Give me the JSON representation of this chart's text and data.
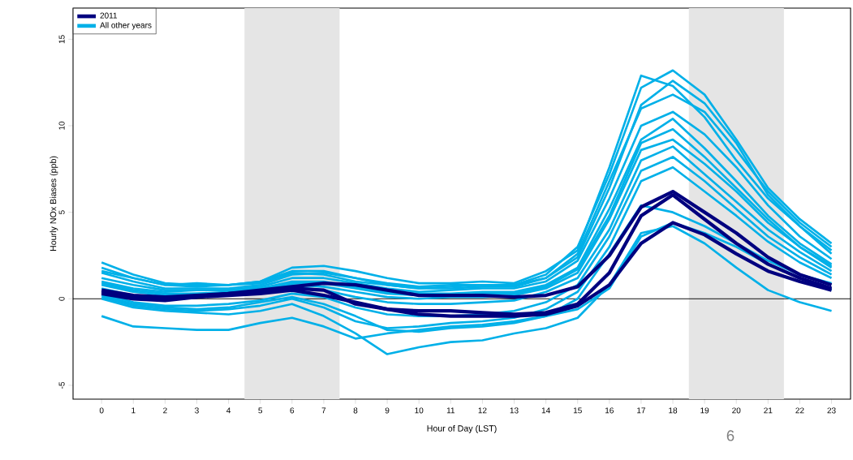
{
  "chart_data": {
    "type": "line",
    "xlabel": "Hour of Day (LST)",
    "ylabel": "Hourly NOx Biases (ppb)",
    "x": [
      0,
      1,
      2,
      3,
      4,
      5,
      6,
      7,
      8,
      9,
      10,
      11,
      12,
      13,
      14,
      15,
      16,
      17,
      18,
      19,
      20,
      21,
      22,
      23
    ],
    "xlim": [
      -0.9,
      23.6
    ],
    "ylim": [
      -5.8,
      16.8
    ],
    "xticks": [
      0,
      1,
      2,
      3,
      4,
      5,
      6,
      7,
      8,
      9,
      10,
      11,
      12,
      13,
      14,
      15,
      16,
      17,
      18,
      19,
      20,
      21,
      22,
      23
    ],
    "yticks": [
      -5,
      0,
      5,
      10,
      15
    ],
    "legend": "top left",
    "grid": false,
    "marker": "none",
    "line_style": "solid",
    "ref_lines": [
      {
        "axis": "y",
        "value": 0,
        "color": "#000000"
      }
    ],
    "bands": [
      {
        "axis": "x",
        "from": 4.5,
        "to": 7.5,
        "color": "#e5e5e5"
      },
      {
        "axis": "x",
        "from": 18.5,
        "to": 21.5,
        "color": "#e5e5e5"
      }
    ],
    "annotations": [
      "6"
    ],
    "series": [
      {
        "name": "2011",
        "color": "#00007f",
        "values": [
          0.5,
          0.2,
          0.1,
          0.2,
          0.3,
          0.5,
          0.7,
          0.9,
          0.8,
          0.5,
          0.2,
          0.2,
          0.2,
          0.1,
          0.2,
          0.7,
          2.5,
          5.3,
          6.2,
          5.0,
          3.8,
          2.4,
          1.4,
          0.8
        ]
      },
      {
        "color": "#00007f",
        "values": [
          0.4,
          0.1,
          0.0,
          0.1,
          0.3,
          0.4,
          0.6,
          0.5,
          -0.3,
          -0.6,
          -0.7,
          -0.7,
          -0.8,
          -0.9,
          -0.8,
          -0.3,
          1.5,
          4.8,
          6.0,
          4.6,
          3.2,
          2.0,
          1.2,
          0.6
        ]
      },
      {
        "color": "#00007f",
        "values": [
          0.3,
          0.0,
          -0.1,
          0.1,
          0.2,
          0.3,
          0.5,
          0.2,
          -0.2,
          -0.6,
          -0.9,
          -1.0,
          -1.0,
          -1.0,
          -0.9,
          -0.4,
          0.8,
          3.2,
          4.4,
          3.7,
          2.6,
          1.6,
          1.0,
          0.5
        ]
      },
      {
        "name": "All other years",
        "color": "#00b0e8",
        "values": [
          -1.0,
          -1.6,
          -1.7,
          -1.8,
          -1.8,
          -1.4,
          -1.1,
          -1.6,
          -2.3,
          -2.0,
          -1.8,
          -1.6,
          -1.5,
          -1.3,
          -1.0,
          -0.6,
          0.6,
          3.6,
          4.4,
          3.8,
          3.0,
          2.0,
          1.2,
          0.5
        ]
      },
      {
        "color": "#00b0e8",
        "values": [
          0.0,
          -0.5,
          -0.7,
          -0.8,
          -0.9,
          -0.7,
          -0.3,
          -1.0,
          -2.0,
          -3.2,
          -2.8,
          -2.5,
          -2.4,
          -2.0,
          -1.7,
          -1.1,
          0.8,
          3.8,
          4.2,
          3.2,
          1.8,
          0.5,
          -0.2,
          -0.7
        ]
      },
      {
        "color": "#00b0e8",
        "values": [
          2.1,
          1.4,
          0.9,
          0.8,
          0.8,
          1.0,
          1.6,
          1.6,
          1.2,
          0.8,
          0.6,
          0.7,
          0.8,
          0.8,
          1.4,
          3.0,
          7.2,
          12.2,
          13.2,
          11.8,
          9.2,
          6.4,
          4.6,
          3.2
        ]
      },
      {
        "color": "#00b0e8",
        "values": [
          1.8,
          1.2,
          0.8,
          0.9,
          0.8,
          1.0,
          1.8,
          1.9,
          1.6,
          1.2,
          0.9,
          0.9,
          1.0,
          0.9,
          1.6,
          2.8,
          7.6,
          12.9,
          12.3,
          10.5,
          8.0,
          5.8,
          4.2,
          2.8
        ]
      },
      {
        "color": "#00b0e8",
        "values": [
          1.5,
          1.0,
          0.6,
          0.6,
          0.6,
          0.8,
          1.4,
          1.5,
          1.2,
          0.9,
          0.7,
          0.8,
          0.8,
          0.8,
          1.2,
          2.4,
          6.4,
          11.2,
          12.6,
          11.3,
          9.0,
          6.0,
          4.2,
          2.6
        ]
      },
      {
        "color": "#00b0e8",
        "values": [
          1.2,
          0.8,
          0.5,
          0.5,
          0.5,
          0.7,
          1.2,
          1.2,
          0.9,
          0.6,
          0.4,
          0.5,
          0.6,
          0.6,
          1.0,
          2.2,
          5.8,
          10.0,
          10.8,
          9.5,
          7.6,
          5.4,
          3.6,
          2.3
        ]
      },
      {
        "color": "#00b0e8",
        "values": [
          1.0,
          0.6,
          0.4,
          0.5,
          0.5,
          0.6,
          1.0,
          1.0,
          0.7,
          0.4,
          0.3,
          0.3,
          0.4,
          0.4,
          0.8,
          1.8,
          5.2,
          9.2,
          10.4,
          8.7,
          6.8,
          4.8,
          3.2,
          2.0
        ]
      },
      {
        "color": "#00b0e8",
        "values": [
          0.8,
          0.4,
          0.2,
          0.3,
          0.3,
          0.5,
          0.8,
          0.7,
          0.4,
          0.1,
          0.0,
          0.1,
          0.1,
          0.2,
          0.6,
          1.5,
          4.6,
          8.6,
          9.2,
          7.8,
          6.2,
          4.4,
          3.0,
          1.8
        ]
      },
      {
        "color": "#00b0e8",
        "values": [
          0.6,
          0.2,
          0.0,
          0.1,
          0.2,
          0.4,
          0.7,
          0.5,
          0.1,
          -0.2,
          -0.3,
          -0.3,
          -0.2,
          -0.1,
          0.4,
          1.2,
          4.0,
          8.0,
          8.8,
          7.2,
          5.6,
          4.0,
          2.7,
          1.6
        ]
      },
      {
        "color": "#00b0e8",
        "values": [
          0.3,
          -0.2,
          -0.4,
          -0.4,
          -0.3,
          -0.1,
          0.3,
          0.1,
          -0.5,
          -0.9,
          -1.0,
          -1.0,
          -0.9,
          -0.7,
          -0.2,
          0.8,
          3.6,
          7.4,
          8.2,
          6.8,
          5.2,
          3.6,
          2.4,
          1.4
        ]
      },
      {
        "color": "#00b0e8",
        "values": [
          0.1,
          -0.4,
          -0.6,
          -0.7,
          -0.6,
          -0.4,
          0.0,
          -0.5,
          -1.3,
          -1.7,
          -1.6,
          -1.4,
          -1.3,
          -1.1,
          -0.6,
          0.4,
          3.0,
          6.8,
          7.6,
          6.2,
          4.8,
          3.3,
          2.1,
          1.2
        ]
      },
      {
        "color": "#00b0e8",
        "values": [
          0.2,
          -0.3,
          -0.5,
          -0.6,
          -0.5,
          -0.2,
          0.1,
          -0.3,
          -1.0,
          -1.8,
          -1.9,
          -1.7,
          -1.6,
          -1.4,
          -1.0,
          0.0,
          2.6,
          5.4,
          5.0,
          4.2,
          3.2,
          2.2,
          1.4,
          0.9
        ]
      },
      {
        "color": "#00b0e8",
        "values": [
          1.6,
          1.2,
          0.8,
          0.7,
          0.8,
          0.9,
          1.5,
          1.4,
          1.0,
          0.8,
          0.6,
          0.6,
          0.7,
          0.7,
          1.2,
          2.6,
          6.8,
          11.0,
          11.8,
          10.8,
          8.6,
          6.2,
          4.4,
          3.0
        ]
      },
      {
        "color": "#00b0e8",
        "values": [
          0.9,
          0.5,
          0.3,
          0.3,
          0.4,
          0.6,
          0.9,
          0.9,
          0.6,
          0.3,
          0.2,
          0.2,
          0.3,
          0.3,
          0.7,
          1.7,
          4.8,
          9.0,
          9.8,
          8.2,
          6.4,
          4.6,
          3.0,
          1.9
        ]
      }
    ]
  }
}
